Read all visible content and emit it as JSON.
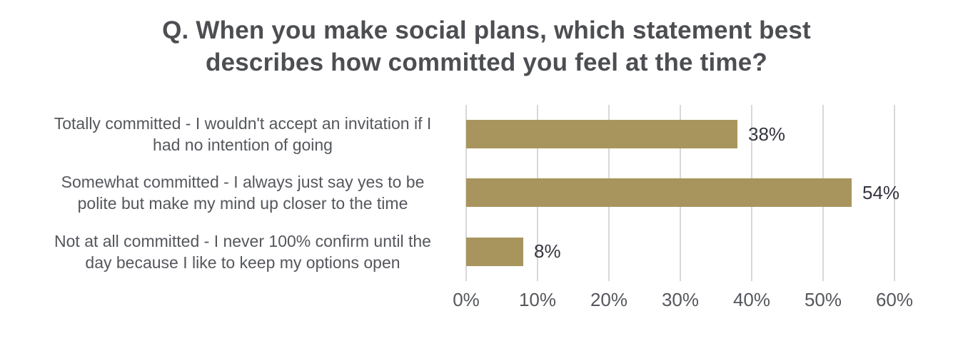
{
  "colors": {
    "background": "#ffffff",
    "bar": "#a8955e",
    "gridline": "#d8d8d8",
    "title_text": "#4d4e52",
    "label_text": "#55575c",
    "value_text": "#34353e"
  },
  "chart_data": {
    "type": "bar",
    "orientation": "horizontal",
    "title": "Q. When you make social plans, which statement best\ndescribes how committed you feel at the time?",
    "categories": [
      "Totally committed - I wouldn't accept an invitation if I\nhad no intention of going",
      "Somewhat committed - I always just say yes to be\npolite but make my mind up closer to the time",
      "Not at all committed - I never 100% confirm until the\nday because I like to keep my options open"
    ],
    "values": [
      38,
      54,
      8
    ],
    "value_labels": [
      "38%",
      "54%",
      "8%"
    ],
    "x_ticks": [
      {
        "value": 0,
        "label": "0%"
      },
      {
        "value": 10,
        "label": "10%"
      },
      {
        "value": 20,
        "label": "20%"
      },
      {
        "value": 30,
        "label": "30%"
      },
      {
        "value": 40,
        "label": "40%"
      },
      {
        "value": 50,
        "label": "50%"
      },
      {
        "value": 60,
        "label": "60%"
      }
    ],
    "xlim": [
      0,
      60
    ],
    "xlabel": "",
    "ylabel": "",
    "grid": true,
    "legend": false
  }
}
